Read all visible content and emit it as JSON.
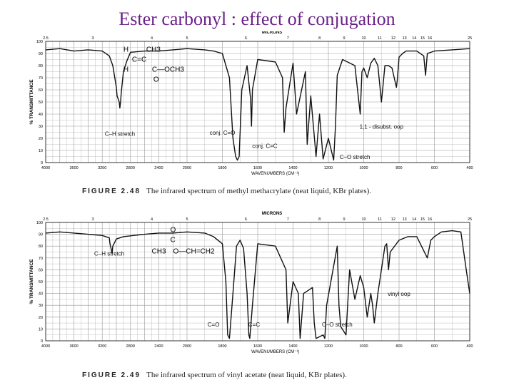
{
  "title": "Ester carbonyl : effect of conjugation",
  "colors": {
    "title": "#6a1f8a",
    "trace": "#111111",
    "grid": "#9a9a9a"
  },
  "chart_data": [
    {
      "type": "line",
      "figure_label": "FIGURE 2.48",
      "caption": "The infrared spectrum of methyl methacrylate (neat liquid, KBr plates).",
      "xlabel": "WAVENUMBERS (CM⁻¹)",
      "ylabel": "% TRANSMITTANCE",
      "top_axis_label": "MICRONS",
      "xlim": [
        4000,
        400
      ],
      "ylim": [
        0,
        100
      ],
      "grid": true,
      "x_ticks": [
        "4000",
        "3600",
        "3200",
        "2800",
        "2400",
        "2000",
        "1800",
        "1600",
        "1400",
        "1200",
        "1000",
        "800",
        "600",
        "400"
      ],
      "y_ticks": [
        "0",
        "10",
        "20",
        "30",
        "40",
        "50",
        "60",
        "70",
        "80",
        "90",
        "100"
      ],
      "micron_ticks": [
        "2.5",
        "3",
        "4",
        "5",
        "6",
        "7",
        "8",
        "9",
        "10",
        "11",
        "12",
        "13",
        "14",
        "15",
        "16",
        "25"
      ],
      "structure": [
        "H",
        "CH3",
        "C=C",
        "H",
        "C—OCH3",
        "O"
      ],
      "annotations": [
        {
          "text": "C–H stretch",
          "x": 2950,
          "y": 22
        },
        {
          "text": "conj. C=O",
          "x": 1800,
          "y": 23
        },
        {
          "text": "conj. C=C",
          "x": 1560,
          "y": 12
        },
        {
          "text": "1,1 - disubst. oop",
          "x": 900,
          "y": 28
        },
        {
          "text": "C–O stretch",
          "x": 1050,
          "y": 3
        }
      ],
      "series": [
        {
          "x": [
            4000,
            3800,
            3600,
            3400,
            3200,
            3100,
            3050,
            3000,
            2990,
            2960,
            2950,
            2940,
            2930,
            2900,
            2850,
            2800,
            2600,
            2400,
            2200,
            2000,
            1900,
            1850,
            1800,
            1760,
            1740,
            1725,
            1715,
            1705,
            1690,
            1660,
            1640,
            1635,
            1630,
            1600,
            1500,
            1460,
            1450,
            1440,
            1400,
            1380,
            1330,
            1320,
            1300,
            1270,
            1250,
            1230,
            1200,
            1170,
            1160,
            1150,
            1120,
            1050,
            1020,
            1010,
            1000,
            980,
            960,
            940,
            920,
            900,
            880,
            860,
            840,
            815,
            810,
            800,
            780,
            760,
            700,
            660,
            650,
            640,
            600,
            500,
            400
          ],
          "y": [
            93,
            94,
            92,
            93,
            92,
            88,
            80,
            62,
            55,
            50,
            45,
            50,
            58,
            75,
            84,
            91,
            92,
            92,
            93,
            94,
            93,
            92,
            90,
            70,
            20,
            5,
            2,
            5,
            60,
            80,
            52,
            30,
            60,
            85,
            83,
            70,
            25,
            45,
            82,
            40,
            75,
            15,
            55,
            5,
            40,
            3,
            20,
            2,
            30,
            72,
            85,
            80,
            40,
            75,
            78,
            70,
            82,
            86,
            80,
            50,
            80,
            80,
            78,
            62,
            68,
            87,
            90,
            92,
            92,
            88,
            72,
            90,
            92,
            93,
            94
          ]
        }
      ]
    },
    {
      "type": "line",
      "figure_label": "FIGURE 2.49",
      "caption": "The infrared spectrum of vinyl acetate (neat liquid, KBr plates).",
      "xlabel": "WAVENUMBERS (CM⁻¹)",
      "ylabel": "% TRANSMITTANCE",
      "top_axis_label": "MICRONS",
      "xlim": [
        4000,
        400
      ],
      "ylim": [
        0,
        100
      ],
      "grid": true,
      "x_ticks": [
        "4000",
        "3600",
        "3200",
        "2800",
        "2400",
        "2000",
        "1800",
        "1600",
        "1400",
        "1200",
        "1000",
        "800",
        "600",
        "400"
      ],
      "y_ticks": [
        "0",
        "10",
        "20",
        "30",
        "40",
        "50",
        "60",
        "70",
        "80",
        "90",
        "100"
      ],
      "micron_ticks": [
        "2.5",
        "3",
        "4",
        "5",
        "6",
        "7",
        "8",
        "9",
        "10",
        "11",
        "12",
        "13",
        "14",
        "15",
        "16",
        "25"
      ],
      "structure": [
        "O",
        "C",
        "CH3",
        "O—CH=CH2"
      ],
      "annotations": [
        {
          "text": "C–H stretch",
          "x": 3100,
          "y": 72
        },
        {
          "text": "C=O",
          "x": 1850,
          "y": 12
        },
        {
          "text": "C=C",
          "x": 1620,
          "y": 12
        },
        {
          "text": "C–O stretch",
          "x": 1150,
          "y": 12
        },
        {
          "text": "vinyl oop",
          "x": 800,
          "y": 38
        }
      ],
      "series": [
        {
          "x": [
            4000,
            3800,
            3600,
            3400,
            3200,
            3100,
            3090,
            3060,
            3050,
            3000,
            2900,
            2600,
            2400,
            2200,
            2000,
            1900,
            1850,
            1800,
            1780,
            1770,
            1760,
            1740,
            1720,
            1700,
            1680,
            1660,
            1650,
            1645,
            1630,
            1600,
            1500,
            1440,
            1430,
            1400,
            1370,
            1360,
            1340,
            1290,
            1280,
            1270,
            1230,
            1220,
            1210,
            1150,
            1140,
            1130,
            1100,
            1080,
            1050,
            1020,
            1000,
            980,
            960,
            950,
            940,
            920,
            880,
            870,
            860,
            850,
            800,
            750,
            700,
            640,
            620,
            600,
            560,
            500,
            450,
            420,
            400
          ],
          "y": [
            91,
            92,
            91,
            90,
            89,
            87,
            82,
            74,
            80,
            86,
            88,
            90,
            91,
            91,
            92,
            91,
            88,
            82,
            50,
            5,
            2,
            40,
            80,
            85,
            78,
            40,
            5,
            2,
            30,
            82,
            80,
            60,
            15,
            50,
            40,
            2,
            40,
            45,
            15,
            2,
            5,
            2,
            30,
            80,
            30,
            12,
            5,
            60,
            35,
            55,
            45,
            20,
            40,
            30,
            15,
            40,
            80,
            82,
            60,
            75,
            85,
            88,
            88,
            70,
            85,
            88,
            92,
            93,
            92,
            60,
            40
          ]
        }
      ]
    }
  ]
}
